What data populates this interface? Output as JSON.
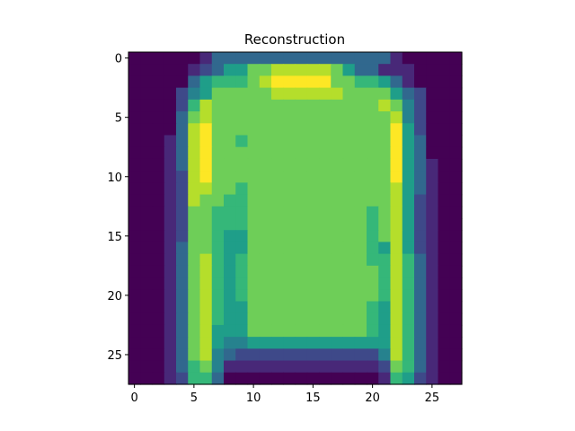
{
  "chart_data": {
    "type": "heatmap",
    "title": "Reconstruction",
    "xlabel": "",
    "ylabel": "",
    "colormap": "viridis",
    "value_range": [
      0,
      1
    ],
    "x_range": [
      -0.5,
      27.5
    ],
    "y_range": [
      27.5,
      -0.5
    ],
    "x_ticks": [
      0,
      5,
      10,
      15,
      20,
      25
    ],
    "y_ticks": [
      0,
      5,
      10,
      15,
      20,
      25
    ],
    "grid": false,
    "rows": [
      "0000001333333333333333100000",
      "0000012355778888875331110000",
      "0000035666789999977665310000",
      "0000245777778888887777532000",
      "0000268777777777777778742000",
      "0000378777777777777777842000",
      "0000389777777777777777952000",
      "0001389776777777777777953000",
      "0001389777777777777777953000",
      "0001389777777777777777953100",
      "0001289777777777777777953100",
      "0001288776777777777777853100",
      "0001287766777777777777852100",
      "0001277666777777777767852100",
      "0001277666777777777767852100",
      "0001277655777777777767852100",
      "0001377655777777777765852100",
      "0001378656777777777766863100",
      "0001378656777777777776863100",
      "0001378656777777777776863100",
      "0001378656777777777776863100",
      "0001378655777777777765863100",
      "0001378655777777777765863100",
      "0001378555777777777765863100",
      "0001378544555555555555863100",
      "0001378432222222222224863100",
      "0001367411111111111112763100",
      "0001266300000000000001652100"
    ]
  }
}
